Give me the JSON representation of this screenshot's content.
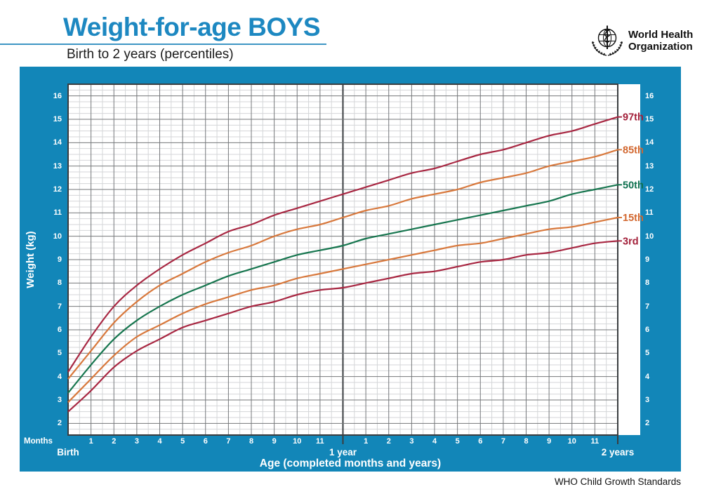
{
  "header": {
    "title": "Weight-for-age BOYS",
    "subtitle": "Birth to 2 years (percentiles)",
    "who_logo_line1": "World Health",
    "who_logo_line2": "Organization"
  },
  "footer": {
    "text": "WHO Child Growth Standards"
  },
  "axes": {
    "y_title": "Weight (kg)",
    "x_title": "Age (completed months and years)",
    "months_label": "Months"
  },
  "colors": {
    "panel_blue": "#1286b8",
    "title_blue": "#1d88c1",
    "grid_minor": "#d4d6d8",
    "grid_major": "#74777a",
    "grid_strong": "#3a3d40",
    "percentile_maroon": "#a82742",
    "percentile_orange": "#d8783c",
    "percentile_green": "#17764f"
  },
  "chart_data": {
    "type": "line",
    "title": "Weight-for-age BOYS — Birth to 2 years (percentiles)",
    "xlabel": "Age (completed months and years)",
    "ylabel": "Weight (kg)",
    "xlim": [
      0,
      24
    ],
    "ylim": [
      1.5,
      16.5
    ],
    "x_major_step_months": 1,
    "x_minor_step_months": 0.5,
    "y_major_step_kg": 1,
    "y_minor_step_kg": 0.25,
    "grid": "on",
    "y_ticks": [
      2,
      3,
      4,
      5,
      6,
      7,
      8,
      9,
      10,
      11,
      12,
      13,
      14,
      15,
      16
    ],
    "x_ticks": [
      {
        "month": 1,
        "label": "1"
      },
      {
        "month": 2,
        "label": "2"
      },
      {
        "month": 3,
        "label": "3"
      },
      {
        "month": 4,
        "label": "4"
      },
      {
        "month": 5,
        "label": "5"
      },
      {
        "month": 6,
        "label": "6"
      },
      {
        "month": 7,
        "label": "7"
      },
      {
        "month": 8,
        "label": "8"
      },
      {
        "month": 9,
        "label": "9"
      },
      {
        "month": 10,
        "label": "10"
      },
      {
        "month": 11,
        "label": "11"
      },
      {
        "month": 13,
        "label": "1"
      },
      {
        "month": 14,
        "label": "2"
      },
      {
        "month": 15,
        "label": "3"
      },
      {
        "month": 16,
        "label": "4"
      },
      {
        "month": 17,
        "label": "5"
      },
      {
        "month": 18,
        "label": "6"
      },
      {
        "month": 19,
        "label": "7"
      },
      {
        "month": 20,
        "label": "8"
      },
      {
        "month": 21,
        "label": "9"
      },
      {
        "month": 22,
        "label": "10"
      },
      {
        "month": 23,
        "label": "11"
      }
    ],
    "x_anchors": [
      {
        "month": 0,
        "label": "Birth"
      },
      {
        "month": 12,
        "label": "1 year"
      },
      {
        "month": 24,
        "label": "2 years"
      }
    ],
    "x_months": [
      0,
      1,
      2,
      3,
      4,
      5,
      6,
      7,
      8,
      9,
      10,
      11,
      12,
      13,
      14,
      15,
      16,
      17,
      18,
      19,
      20,
      21,
      22,
      23,
      24
    ],
    "series": [
      {
        "name": "97th",
        "color": "#a82742",
        "label_color": "#a21f39",
        "values": [
          4.2,
          5.7,
          7.0,
          7.9,
          8.6,
          9.2,
          9.7,
          10.2,
          10.5,
          10.9,
          11.2,
          11.5,
          11.8,
          12.1,
          12.4,
          12.7,
          12.9,
          13.2,
          13.5,
          13.7,
          14.0,
          14.3,
          14.5,
          14.8,
          15.1
        ]
      },
      {
        "name": "85th",
        "color": "#d8783c",
        "label_color": "#d2672f",
        "values": [
          3.9,
          5.1,
          6.3,
          7.2,
          7.9,
          8.4,
          8.9,
          9.3,
          9.6,
          10.0,
          10.3,
          10.5,
          10.8,
          11.1,
          11.3,
          11.6,
          11.8,
          12.0,
          12.3,
          12.5,
          12.7,
          13.0,
          13.2,
          13.4,
          13.7
        ]
      },
      {
        "name": "50th",
        "color": "#17764f",
        "label_color": "#0f7150",
        "values": [
          3.3,
          4.5,
          5.6,
          6.4,
          7.0,
          7.5,
          7.9,
          8.3,
          8.6,
          8.9,
          9.2,
          9.4,
          9.6,
          9.9,
          10.1,
          10.3,
          10.5,
          10.7,
          10.9,
          11.1,
          11.3,
          11.5,
          11.8,
          12.0,
          12.2
        ]
      },
      {
        "name": "15th",
        "color": "#d8783c",
        "label_color": "#d2672f",
        "values": [
          2.9,
          3.9,
          4.9,
          5.7,
          6.2,
          6.7,
          7.1,
          7.4,
          7.7,
          7.9,
          8.2,
          8.4,
          8.6,
          8.8,
          9.0,
          9.2,
          9.4,
          9.6,
          9.7,
          9.9,
          10.1,
          10.3,
          10.4,
          10.6,
          10.8
        ]
      },
      {
        "name": "3rd",
        "color": "#a82742",
        "label_color": "#a21f39",
        "values": [
          2.5,
          3.4,
          4.4,
          5.1,
          5.6,
          6.1,
          6.4,
          6.7,
          7.0,
          7.2,
          7.5,
          7.7,
          7.8,
          8.0,
          8.2,
          8.4,
          8.5,
          8.7,
          8.9,
          9.0,
          9.2,
          9.3,
          9.5,
          9.7,
          9.8
        ]
      }
    ]
  }
}
